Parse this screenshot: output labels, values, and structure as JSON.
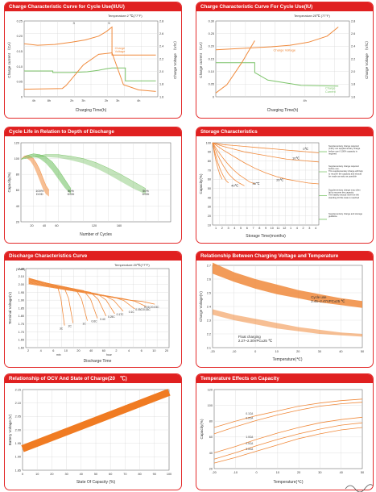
{
  "colors": {
    "header_red": "#e02020",
    "orange": "#f08a3c",
    "green": "#7cc46a",
    "grid": "#d9d9d9",
    "dark": "#333333"
  },
  "chart_data": [
    {
      "id": "c1",
      "type": "line",
      "title": "Charge Characteristic Curve for Cycle Use(IIUU)",
      "note": "Temperature:2  ℃(77°F)",
      "xlabel": "Charging Time(h)",
      "ylabel_left": "Charge current （CA）",
      "ylabel_right": "Charge Voltage （V/C）",
      "yticks_left": [
        "0.25",
        "0.20",
        "0.15",
        "0.10",
        "0.05",
        "0"
      ],
      "yticks_right": [
        "2.8",
        "2.6",
        "2.4",
        "2.2",
        "2.0",
        "1.8",
        "1.6"
      ],
      "xticks": [
        "4h",
        "8h",
        "2h",
        "3h",
        "2h",
        "3h",
        "4h"
      ],
      "markers": [
        "3",
        "5"
      ],
      "series": [
        {
          "name": "Charge Voltage",
          "color": "orange",
          "x": [
            0,
            0.7,
            1.6,
            2.5,
            3.2,
            3.9,
            4.3,
            4.6,
            4.6,
            6.9
          ],
          "y": [
            0.7,
            0.68,
            0.69,
            0.72,
            0.75,
            0.8,
            0.86,
            0.92,
            0.55,
            0.55
          ]
        },
        {
          "name": "",
          "color": "green",
          "x": [
            0,
            1.5,
            1.5,
            2.4,
            3.3,
            3.9,
            4.3,
            4.6,
            5.3,
            5.3,
            6.9
          ],
          "y": [
            0.34,
            0.34,
            0.32,
            0.32,
            0.33,
            0.35,
            0.37,
            0.38,
            0.38,
            0.21,
            0.21
          ]
        },
        {
          "name": "",
          "color": "orange",
          "x": [
            0,
            2.0,
            2.2,
            3.1,
            3.9,
            4.6,
            5.2,
            6.0,
            6.9
          ],
          "y": [
            0.1,
            0.11,
            0.15,
            0.42,
            0.56,
            0.58,
            0.16,
            0.09,
            0.07
          ]
        }
      ],
      "labels": [
        {
          "text": "Charge Voltage",
          "color": "orange"
        }
      ]
    },
    {
      "id": "c2",
      "type": "line",
      "title": "Charge Characteristic Curve For Cycle Use(IU)",
      "note": "Temperature:25℃ (77°F)",
      "xlabel": "Charging Time(h)",
      "ylabel_left": "Charge current （CA）",
      "ylabel_right": "Charge Voltage （V/C）",
      "yticks_left": [
        "0.30",
        "0.25",
        "0.20",
        "0.15",
        "0.10",
        "0.05",
        "0"
      ],
      "yticks_right": [
        "2.8",
        "2.6",
        "2.4",
        "2.2",
        "2.0",
        "1.8",
        "1.6"
      ],
      "xticks": [
        "",
        "",
        "4h",
        "",
        ""
      ],
      "series": [
        {
          "name": "Charge Voltage",
          "color": "orange",
          "x": [
            0,
            0.8,
            1.5,
            2.0,
            2.5,
            3.0,
            3.3
          ],
          "y": [
            0.62,
            0.64,
            0.66,
            0.68,
            0.72,
            0.8,
            0.92
          ]
        },
        {
          "name": "",
          "color": "green",
          "x": [
            0,
            1.05,
            1.05,
            1.4,
            2.3,
            3.3
          ],
          "y": [
            0.45,
            0.45,
            0.32,
            0.22,
            0.15,
            0.14
          ]
        },
        {
          "name": "",
          "color": "orange",
          "x": [
            0,
            0.3,
            0.7,
            1.05,
            1.05
          ],
          "y": [
            0.05,
            0.16,
            0.45,
            0.74,
            0.74
          ]
        }
      ],
      "labels": [
        {
          "text": "Charge Voltage",
          "color": "orange"
        },
        {
          "text": "Charge Current",
          "color": "green"
        }
      ]
    },
    {
      "id": "c3",
      "type": "area",
      "title": "Cycle Life in Relation to Depth of Discharge",
      "xlabel": "Number of Cycles",
      "ylabel": "Capacity(%)",
      "yticks": [
        "120",
        "100",
        "80",
        "60",
        "40",
        "20"
      ],
      "xticks": [
        "20",
        "40",
        "60",
        "80",
        "100",
        "120",
        "140",
        "160",
        "180",
        "200",
        "220",
        "240"
      ],
      "xticks_labeled": [
        "20",
        "40",
        "60",
        "120",
        "160"
      ],
      "groups": [
        {
          "label": "100%\nDOD",
          "color": "#f08a3c",
          "x": [
            0,
            5,
            10,
            15,
            20,
            25,
            30,
            35,
            40,
            45
          ],
          "upper": [
            99,
            103,
            104,
            103,
            100,
            94,
            86,
            76,
            66,
            60
          ],
          "lower": [
            99,
            101,
            100,
            97,
            91,
            82,
            72,
            62,
            55,
            52
          ]
        },
        {
          "label": "80%\nDOD",
          "color": "#6cbf5c",
          "x": [
            0,
            10,
            20,
            30,
            40,
            50,
            60,
            70,
            80
          ],
          "upper": [
            99,
            104,
            106,
            105,
            102,
            96,
            86,
            74,
            62
          ],
          "lower": [
            99,
            102,
            103,
            100,
            94,
            85,
            74,
            63,
            55
          ]
        },
        {
          "label": "50%\nDOD",
          "color": "#7cc46a",
          "x": [
            0,
            20,
            40,
            60,
            80,
            100,
            120,
            140,
            160,
            180,
            200
          ],
          "upper": [
            99,
            103,
            105,
            105,
            103,
            100,
            95,
            88,
            80,
            71,
            62
          ],
          "lower": [
            99,
            101,
            102,
            101,
            98,
            94,
            88,
            80,
            71,
            62,
            55
          ]
        }
      ]
    },
    {
      "id": "c4",
      "type": "line",
      "title": "Storage Characteristics",
      "xlabel": "Storage Time(months)",
      "ylabel": "Capacity(%)",
      "yticks": [
        "100",
        "90",
        "80",
        "70",
        "60",
        "50",
        "40",
        "30",
        "20",
        "10"
      ],
      "xticks": [
        "1",
        "2",
        "3",
        "4",
        "5",
        "6",
        "7",
        "8",
        "9",
        "10",
        "11",
        "12",
        "1",
        "4",
        "2",
        "3",
        "4"
      ],
      "series": [
        {
          "name": "0℃",
          "color": "orange",
          "x": [
            0,
            2,
            4,
            6,
            8,
            10,
            12,
            14,
            16,
            18,
            20
          ],
          "y": [
            100,
            98,
            97,
            96,
            95,
            94,
            93,
            92,
            91,
            90,
            89
          ]
        },
        {
          "name": "10℃",
          "color": "orange",
          "x": [
            0,
            2,
            4,
            6,
            8,
            10,
            12,
            14,
            16,
            18,
            20
          ],
          "y": [
            100,
            96,
            93,
            90,
            88,
            86,
            84,
            82,
            81,
            80,
            79
          ]
        },
        {
          "name": "20℃",
          "color": "orange",
          "x": [
            0,
            2,
            4,
            6,
            8,
            10,
            12,
            14,
            16,
            18,
            20
          ],
          "y": [
            100,
            92,
            85,
            78,
            72,
            67,
            63,
            60,
            58,
            56,
            55
          ]
        },
        {
          "name": "30℃",
          "color": "orange",
          "x": [
            0,
            1,
            2,
            3,
            4,
            5,
            6,
            7,
            8
          ],
          "y": [
            100,
            91,
            83,
            76,
            70,
            65,
            61,
            57,
            55
          ]
        },
        {
          "name": "40℃",
          "color": "orange",
          "x": [
            0,
            1,
            2,
            3,
            4,
            5,
            6
          ],
          "y": [
            100,
            86,
            75,
            66,
            60,
            56,
            53
          ]
        },
        {
          "name": "",
          "color": "orange",
          "x": [
            0,
            0.5,
            1,
            1.5,
            2,
            2.5,
            3
          ],
          "y": [
            100,
            88,
            78,
            70,
            64,
            59,
            56
          ]
        },
        {
          "name": "",
          "color": "orange",
          "x": [
            0,
            0.3,
            0.6,
            1,
            1.4,
            1.8
          ],
          "y": [
            100,
            90,
            81,
            72,
            65,
            60
          ]
        }
      ],
      "notes": [
        "Supplementary charge required\n(Carry out supplementary charge\nbefore use if 100% capacity is\nrequired",
        "Supplementary charge required\nbefore use.\nThis supplementary charge will help\nto recover the capacity and should\nbe made  as early as possible",
        "Supplementary charge may often\nfail to recover the capacity\nThe battery should never be left\nstanding till this state is reached",
        "Supplementary charge and storage\nguideline"
      ]
    },
    {
      "id": "c5",
      "type": "line",
      "title": "Discharge Characteristics Curve",
      "note": "Temperature:20℃(77°F)",
      "xlabel": "Discharge Time",
      "ylabel": "Terminal Voltage(V)",
      "y_unit": "(V/cell)",
      "yticks": [
        "2.20",
        "2.10",
        "2.00",
        "1.95",
        "1.90",
        "1.85",
        "1.80",
        "1.75",
        "1.70",
        "1.65",
        "1.60"
      ],
      "xticks": [
        "2",
        "4",
        "6",
        "10",
        "20",
        "40",
        "60",
        "2",
        "4",
        "6",
        "10",
        "20"
      ],
      "xunits": [
        "min",
        "hour"
      ],
      "series": [
        {
          "name": "3C",
          "end": 0.27
        },
        {
          "name": "2C",
          "end": 0.33
        },
        {
          "name": "1C",
          "end": 0.43
        },
        {
          "name": "0.6C",
          "end": 0.5
        },
        {
          "name": "0.4C",
          "end": 0.56
        },
        {
          "name": "0.25C",
          "end": 0.62
        },
        {
          "name": "0.17C",
          "end": 0.68
        },
        {
          "name": "0.1C",
          "end": 0.76
        },
        {
          "name": "0.05C/0.03C",
          "end": 0.84
        },
        {
          "name": "0.01C/0.03C",
          "end": 0.9
        }
      ],
      "curve_labels": [
        "3C",
        "2C",
        "1C",
        "0.6C",
        "0.4C",
        "0.25C",
        "0.17C",
        "0.1C",
        "0.05C/0.03C",
        "0.01C/0.03C"
      ]
    },
    {
      "id": "c6",
      "type": "area",
      "title": "Relationship Between Charging Voltage and Temperature",
      "xlabel": "Temperature(℃)",
      "ylabel": "Charge Voltage(V)",
      "yticks": [
        "2.7",
        "2.6",
        "2.5",
        "2.4",
        "2.3",
        "2.2",
        "2.1"
      ],
      "xticks": [
        "-20",
        "-10",
        "0",
        "10",
        "20",
        "30",
        "40",
        "50"
      ],
      "bands": [
        {
          "label": "Cycle use\n2.45~2.47VPC±25 ℃",
          "x": [
            -20,
            -10,
            0,
            10,
            20,
            30,
            40,
            50
          ],
          "upper": [
            2.72,
            2.65,
            2.6,
            2.56,
            2.52,
            2.49,
            2.46,
            2.44
          ],
          "lower": [
            2.64,
            2.58,
            2.53,
            2.49,
            2.46,
            2.43,
            2.41,
            2.39
          ]
        },
        {
          "label": "Float charging\n2.27~2.30VPC±25 ℃",
          "x": [
            -20,
            -10,
            0,
            10,
            20,
            30,
            40,
            50
          ],
          "upper": [
            2.38,
            2.34,
            2.31,
            2.28,
            2.25,
            2.23,
            2.21,
            2.2
          ],
          "lower": [
            2.34,
            2.3,
            2.27,
            2.24,
            2.22,
            2.2,
            2.19,
            2.18
          ]
        }
      ]
    },
    {
      "id": "c7",
      "type": "line",
      "title": "Relationship of OCV And State of Charge(20　℃)",
      "xlabel": "State Of Capacity (%)",
      "ylabel": "Battery Voltage (V)",
      "yticks": [
        "2.15",
        "2.10",
        "2.05",
        "2.00",
        "1.95",
        "1.90",
        "1.85"
      ],
      "xticks": [
        "0",
        "10",
        "20",
        "30",
        "40",
        "50",
        "60",
        "70",
        "80",
        "90",
        "100"
      ],
      "series": [
        {
          "name": "",
          "x": [
            0,
            100
          ],
          "y": [
            1.93,
            2.14
          ]
        }
      ]
    },
    {
      "id": "c8",
      "type": "line",
      "title": "Temperature Effects on Capacity",
      "xlabel": "Temperature(℃)",
      "ylabel": "Capacity(%)",
      "yticks": [
        "120",
        "100",
        "80",
        "60",
        "40",
        "20"
      ],
      "xticks": [
        "-20",
        "-10",
        "0",
        "10",
        "20",
        "30",
        "40",
        "50"
      ],
      "series": [
        {
          "name": "0.1CA",
          "x": [
            -20,
            -10,
            0,
            10,
            20,
            30,
            40,
            50
          ],
          "y": [
            72,
            80,
            87,
            93,
            99,
            103,
            106,
            108
          ]
        },
        {
          "name": "0.2CA",
          "x": [
            -20,
            -10,
            0,
            10,
            20,
            30,
            40,
            50
          ],
          "y": [
            64,
            73,
            81,
            88,
            94,
            99,
            102,
            104
          ]
        },
        {
          "name": "1.0CA",
          "x": [
            -20,
            -10,
            0,
            10,
            20,
            30,
            40,
            50
          ],
          "y": [
            40,
            48,
            57,
            65,
            72,
            78,
            82,
            85
          ]
        },
        {
          "name": "2.0CA",
          "x": [
            -20,
            -10,
            0,
            10,
            20,
            30,
            40,
            50
          ],
          "y": [
            32,
            40,
            49,
            57,
            64,
            70,
            75,
            78
          ]
        },
        {
          "name": "3.0CA",
          "x": [
            -20,
            -10,
            0,
            10,
            20,
            30,
            40,
            50
          ],
          "y": [
            27,
            34,
            42,
            50,
            58,
            64,
            69,
            72
          ]
        }
      ]
    }
  ]
}
